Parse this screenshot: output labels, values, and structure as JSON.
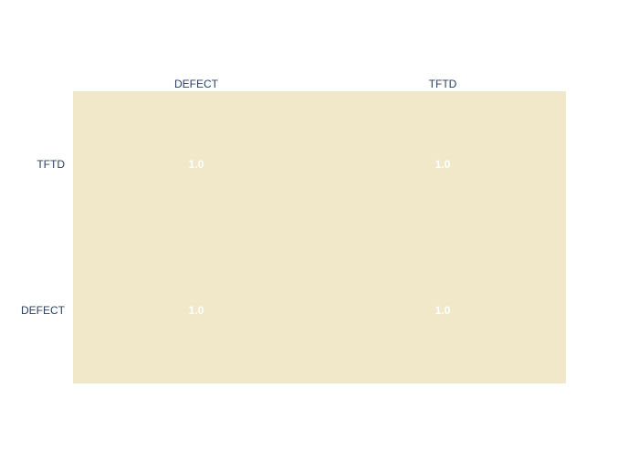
{
  "chart_data": {
    "type": "heatmap",
    "x_categories": [
      "DEFECT",
      "TFTD"
    ],
    "y_categories": [
      "TFTD",
      "DEFECT"
    ],
    "values": [
      [
        1.0,
        1.0
      ],
      [
        1.0,
        1.0
      ]
    ],
    "cell_labels": [
      [
        "1.0",
        "1.0"
      ],
      [
        "1.0",
        "1.0"
      ]
    ],
    "x_axis_side": "top",
    "grid": false,
    "colors": {
      "cell_fill": "#f0e8c8",
      "cell_text": "#ffffff",
      "tick_text": "#2a3f5f",
      "background": "#ffffff"
    }
  }
}
